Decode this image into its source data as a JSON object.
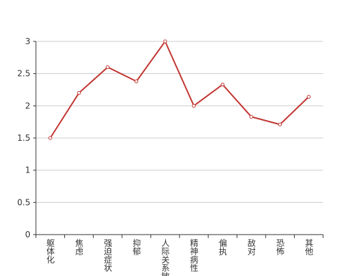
{
  "chart_data": {
    "type": "line",
    "categories": [
      "躯体化",
      "焦虑",
      "强迫症状",
      "抑郁",
      "人际关系敏感",
      "精神病性",
      "偏执",
      "敌对",
      "恐怖",
      "其他"
    ],
    "series": [
      {
        "color": "#c23531",
        "values": [
          1.5,
          2.2,
          2.6,
          2.38,
          3.0,
          2.0,
          2.33,
          1.83,
          1.71,
          2.14
        ]
      }
    ],
    "ylim": [
      0,
      3
    ],
    "yticks": [
      0,
      0.5,
      1,
      1.5,
      2,
      2.5,
      3
    ],
    "grid": true
  }
}
